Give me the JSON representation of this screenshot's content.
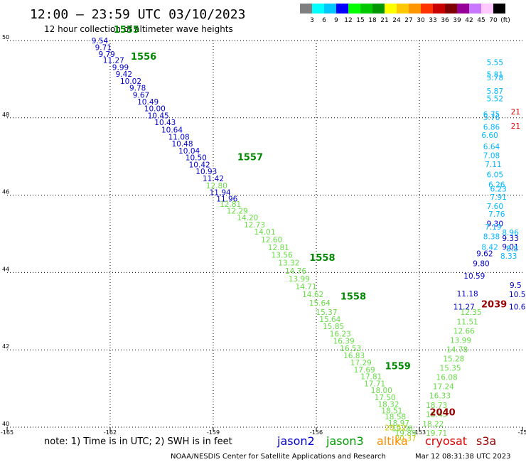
{
  "header": {
    "title": "12:00 – 23:59 UTC 03/10/2023",
    "subtitle": "12 hour collection of altimeter wave heights"
  },
  "colorbar": {
    "labels": [
      "3",
      "6",
      "9",
      "12",
      "15",
      "18",
      "21",
      "24",
      "27",
      "30",
      "33",
      "36",
      "39",
      "42",
      "45",
      "70",
      "(ft)"
    ],
    "colors": [
      "#7f7f7f",
      "#00ffff",
      "#00c8ff",
      "#0000ff",
      "#00ff00",
      "#00c800",
      "#009600",
      "#ffff00",
      "#ffc800",
      "#ff9600",
      "#ff3200",
      "#c80000",
      "#7f0000",
      "#960096",
      "#c878ff",
      "#ffc8ff",
      "#000000"
    ]
  },
  "footer": {
    "note": "note: 1) Time is in UTC; 2) SWH is in feet",
    "credit": "NOAA/NESDIS Center for Satellite Applications and Research",
    "timestamp": "Mar 12 08:31:38 UTC 2023"
  },
  "legend": [
    {
      "name": "jason2",
      "color": "#0000cc"
    },
    {
      "name": "jason3",
      "color": "#009900"
    },
    {
      "name": "altika",
      "color": "#ff8c00"
    },
    {
      "name": "cryosat",
      "color": "#dd0000"
    },
    {
      "name": "s3a",
      "color": "#990000"
    }
  ],
  "chart_data": {
    "type": "scatter",
    "xlim": [
      -165,
      -150
    ],
    "ylim": [
      40,
      50
    ],
    "x_ticks": [
      "-165",
      "-162",
      "-159",
      "-156",
      "-153",
      "-15"
    ],
    "y_ticks": [
      "40",
      "42",
      "44",
      "46",
      "48",
      "50"
    ],
    "grid": true,
    "series": [
      {
        "name": "jason2",
        "color": "#0000cc",
        "points": [
          {
            "x": -162.3,
            "y": 49.93,
            "v": "9.54"
          },
          {
            "x": -162.2,
            "y": 49.75,
            "v": "9.71"
          },
          {
            "x": -162.1,
            "y": 49.58,
            "v": "9.79"
          },
          {
            "x": -161.9,
            "y": 49.42,
            "v": "11.27"
          },
          {
            "x": -161.7,
            "y": 49.24,
            "v": "9.99"
          },
          {
            "x": -161.6,
            "y": 49.06,
            "v": "9.42"
          },
          {
            "x": -161.4,
            "y": 48.88,
            "v": "10.02"
          },
          {
            "x": -161.2,
            "y": 48.7,
            "v": "9.78"
          },
          {
            "x": -161.1,
            "y": 48.52,
            "v": "9.67"
          },
          {
            "x": -160.9,
            "y": 48.35,
            "v": "10.49"
          },
          {
            "x": -160.7,
            "y": 48.17,
            "v": "10.00"
          },
          {
            "x": -160.6,
            "y": 47.99,
            "v": "10.45"
          },
          {
            "x": -160.4,
            "y": 47.81,
            "v": "10.43"
          },
          {
            "x": -160.2,
            "y": 47.62,
            "v": "10.64"
          },
          {
            "x": -160.0,
            "y": 47.44,
            "v": "11.08"
          },
          {
            "x": -159.9,
            "y": 47.26,
            "v": "10.48"
          },
          {
            "x": -159.7,
            "y": 47.08,
            "v": "10.04"
          },
          {
            "x": -159.5,
            "y": 46.9,
            "v": "10.50"
          },
          {
            "x": -159.4,
            "y": 46.72,
            "v": "10.42"
          },
          {
            "x": -159.2,
            "y": 46.54,
            "v": "10.93"
          },
          {
            "x": -159.0,
            "y": 46.36,
            "v": "11.42"
          },
          {
            "x": -158.8,
            "y": 46.0,
            "v": "11.94"
          },
          {
            "x": -158.6,
            "y": 45.84,
            "v": "11.96"
          },
          {
            "x": -151.7,
            "y": 43.04,
            "v": "11.27"
          },
          {
            "x": -151.6,
            "y": 43.38,
            "v": "11.18"
          },
          {
            "x": -151.4,
            "y": 43.84,
            "v": "10.59"
          },
          {
            "x": -151.2,
            "y": 44.16,
            "v": "9.80"
          },
          {
            "x": -151.1,
            "y": 44.42,
            "v": "9.62"
          },
          {
            "x": -150.8,
            "y": 45.19,
            "v": "9.30"
          },
          {
            "x": -150.35,
            "y": 44.82,
            "v": "9.33"
          },
          {
            "x": -150.35,
            "y": 44.6,
            "v": "9.01"
          },
          {
            "x": -150.2,
            "y": 43.6,
            "v": "9.5"
          },
          {
            "x": -150.15,
            "y": 43.36,
            "v": "10.5"
          },
          {
            "x": -150.15,
            "y": 43.04,
            "v": "10.6"
          }
        ]
      },
      {
        "name": "jason2",
        "color": "#00b7ff",
        "points": [
          {
            "x": -150.8,
            "y": 49.37,
            "v": "5.55"
          },
          {
            "x": -150.8,
            "y": 49.05,
            "v": "5.81"
          },
          {
            "x": -150.8,
            "y": 48.97,
            "v": "5.78"
          },
          {
            "x": -150.8,
            "y": 48.62,
            "v": "5.87"
          },
          {
            "x": -150.8,
            "y": 48.43,
            "v": "5.52"
          },
          {
            "x": -150.9,
            "y": 48.02,
            "v": "6.75"
          },
          {
            "x": -150.9,
            "y": 47.94,
            "v": "5.76"
          },
          {
            "x": -150.9,
            "y": 47.69,
            "v": "6.86"
          },
          {
            "x": -150.95,
            "y": 47.48,
            "v": "6.60"
          },
          {
            "x": -150.9,
            "y": 47.19,
            "v": "6.64"
          },
          {
            "x": -150.9,
            "y": 46.96,
            "v": "7.08"
          },
          {
            "x": -150.85,
            "y": 46.73,
            "v": "7.11"
          },
          {
            "x": -150.8,
            "y": 46.46,
            "v": "6.05"
          },
          {
            "x": -150.75,
            "y": 46.2,
            "v": "6.26"
          },
          {
            "x": -150.7,
            "y": 46.09,
            "v": "6.23"
          },
          {
            "x": -150.7,
            "y": 45.88,
            "v": "7.91"
          },
          {
            "x": -150.8,
            "y": 45.64,
            "v": "7.60"
          },
          {
            "x": -150.75,
            "y": 45.44,
            "v": "7.76"
          },
          {
            "x": -150.85,
            "y": 45.11,
            "v": "7.19"
          },
          {
            "x": -150.9,
            "y": 44.86,
            "v": "8.38"
          },
          {
            "x": -150.95,
            "y": 44.59,
            "v": "8.42"
          },
          {
            "x": -150.4,
            "y": 44.36,
            "v": "8.33"
          },
          {
            "x": -150.35,
            "y": 44.96,
            "v": "8.96"
          },
          {
            "x": -150.3,
            "y": 44.55,
            "v": "8.8"
          }
        ]
      },
      {
        "name": "jason3",
        "color": "#66dd44",
        "points": [
          {
            "x": -158.9,
            "y": 46.18,
            "v": "12.80"
          },
          {
            "x": -158.5,
            "y": 45.7,
            "v": "12.81"
          },
          {
            "x": -158.3,
            "y": 45.52,
            "v": "12.29"
          },
          {
            "x": -158.0,
            "y": 45.35,
            "v": "14.20"
          },
          {
            "x": -157.8,
            "y": 45.17,
            "v": "12.73"
          },
          {
            "x": -157.5,
            "y": 44.98,
            "v": "14.01"
          },
          {
            "x": -157.3,
            "y": 44.78,
            "v": "12.60"
          },
          {
            "x": -157.1,
            "y": 44.58,
            "v": "12.81"
          },
          {
            "x": -157.0,
            "y": 44.38,
            "v": "13.56"
          },
          {
            "x": -156.8,
            "y": 44.18,
            "v": "13.32"
          },
          {
            "x": -156.6,
            "y": 43.97,
            "v": "14.76"
          },
          {
            "x": -156.5,
            "y": 43.77,
            "v": "13.99"
          },
          {
            "x": -156.3,
            "y": 43.57,
            "v": "14.71"
          },
          {
            "x": -156.1,
            "y": 43.36,
            "v": "14.62"
          },
          {
            "x": -155.9,
            "y": 43.14,
            "v": "15.64"
          },
          {
            "x": -155.7,
            "y": 42.9,
            "v": "15.37"
          },
          {
            "x": -155.6,
            "y": 42.72,
            "v": "15.64"
          },
          {
            "x": -155.5,
            "y": 42.54,
            "v": "15.85"
          },
          {
            "x": -155.3,
            "y": 42.34,
            "v": "16.23"
          },
          {
            "x": -155.2,
            "y": 42.16,
            "v": "16.39"
          },
          {
            "x": -155.0,
            "y": 41.97,
            "v": "16.53"
          },
          {
            "x": -154.9,
            "y": 41.78,
            "v": "16.83"
          },
          {
            "x": -154.7,
            "y": 41.6,
            "v": "17.29"
          },
          {
            "x": -154.6,
            "y": 41.42,
            "v": "17.69"
          },
          {
            "x": -154.4,
            "y": 41.24,
            "v": "17.81"
          },
          {
            "x": -154.3,
            "y": 41.06,
            "v": "17.71"
          },
          {
            "x": -154.1,
            "y": 40.88,
            "v": "18.00"
          },
          {
            "x": -154.0,
            "y": 40.7,
            "v": "17.50"
          },
          {
            "x": -153.9,
            "y": 40.52,
            "v": "18.32"
          },
          {
            "x": -153.8,
            "y": 40.36,
            "v": "18.51"
          },
          {
            "x": -153.7,
            "y": 40.2,
            "v": "18.58"
          },
          {
            "x": -153.6,
            "y": 40.04,
            "v": "18.97"
          },
          {
            "x": -153.5,
            "y": 39.9,
            "v": "19.06"
          },
          {
            "x": -153.4,
            "y": 39.78,
            "v": "19.89"
          },
          {
            "x": -152.5,
            "y": 39.78,
            "v": "19.71"
          },
          {
            "x": -152.6,
            "y": 40.02,
            "v": "18.22"
          },
          {
            "x": -152.5,
            "y": 40.26,
            "v": "18.45"
          },
          {
            "x": -152.5,
            "y": 40.5,
            "v": "18.73"
          },
          {
            "x": -152.4,
            "y": 40.74,
            "v": "16.33"
          },
          {
            "x": -152.3,
            "y": 40.98,
            "v": "17.24"
          },
          {
            "x": -152.2,
            "y": 41.22,
            "v": "16.08"
          },
          {
            "x": -152.1,
            "y": 41.46,
            "v": "15.35"
          },
          {
            "x": -152.0,
            "y": 41.7,
            "v": "15.28"
          },
          {
            "x": -151.9,
            "y": 41.94,
            "v": "14.78"
          },
          {
            "x": -151.8,
            "y": 42.18,
            "v": "13.99"
          },
          {
            "x": -151.7,
            "y": 42.42,
            "v": "12.66"
          },
          {
            "x": -151.6,
            "y": 42.66,
            "v": "11.51"
          },
          {
            "x": -151.5,
            "y": 42.9,
            "v": "12.35"
          }
        ]
      },
      {
        "name": "altika",
        "color": "#cccc00",
        "points": [
          {
            "x": -153.7,
            "y": 39.92,
            "v": "20.52"
          },
          {
            "x": -153.4,
            "y": 39.64,
            "v": "20.37"
          }
        ]
      },
      {
        "name": "cryosat",
        "color": "#dd0000",
        "points": [
          {
            "x": -150.2,
            "y": 48.09,
            "v": "21"
          },
          {
            "x": -150.2,
            "y": 47.72,
            "v": "21"
          }
        ]
      }
    ],
    "annotations": [
      {
        "x": -161.9,
        "y": 50.2,
        "text": "1555",
        "color": "#008800"
      },
      {
        "x": -161.4,
        "y": 49.5,
        "text": "1556",
        "color": "#008800"
      },
      {
        "x": -158.3,
        "y": 46.9,
        "text": "1557",
        "color": "#008800"
      },
      {
        "x": -156.2,
        "y": 44.3,
        "text": "1558",
        "color": "#008800"
      },
      {
        "x": -155.3,
        "y": 43.3,
        "text": "1558",
        "color": "#008800"
      },
      {
        "x": -154.0,
        "y": 41.5,
        "text": "1559",
        "color": "#008800"
      },
      {
        "x": -151.2,
        "y": 43.1,
        "text": "2039",
        "color": "#990000"
      },
      {
        "x": -152.7,
        "y": 40.3,
        "text": "2040",
        "color": "#990000"
      }
    ]
  }
}
